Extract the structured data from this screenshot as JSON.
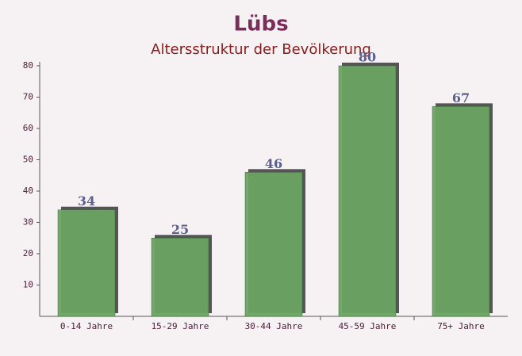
{
  "chart_data": {
    "type": "bar",
    "title": "Lübs",
    "subtitle": "Altersstruktur der Bevölkerung",
    "categories": [
      "0-14 Jahre",
      "15-29 Jahre",
      "30-44 Jahre",
      "45-59 Jahre",
      "75+ Jahre"
    ],
    "values": [
      34,
      25,
      46,
      80,
      67
    ],
    "color": "#6aa463",
    "ylim": [
      0,
      80
    ],
    "yticks": [
      10,
      20,
      30,
      40,
      50,
      60,
      70,
      80
    ],
    "grid": false
  }
}
